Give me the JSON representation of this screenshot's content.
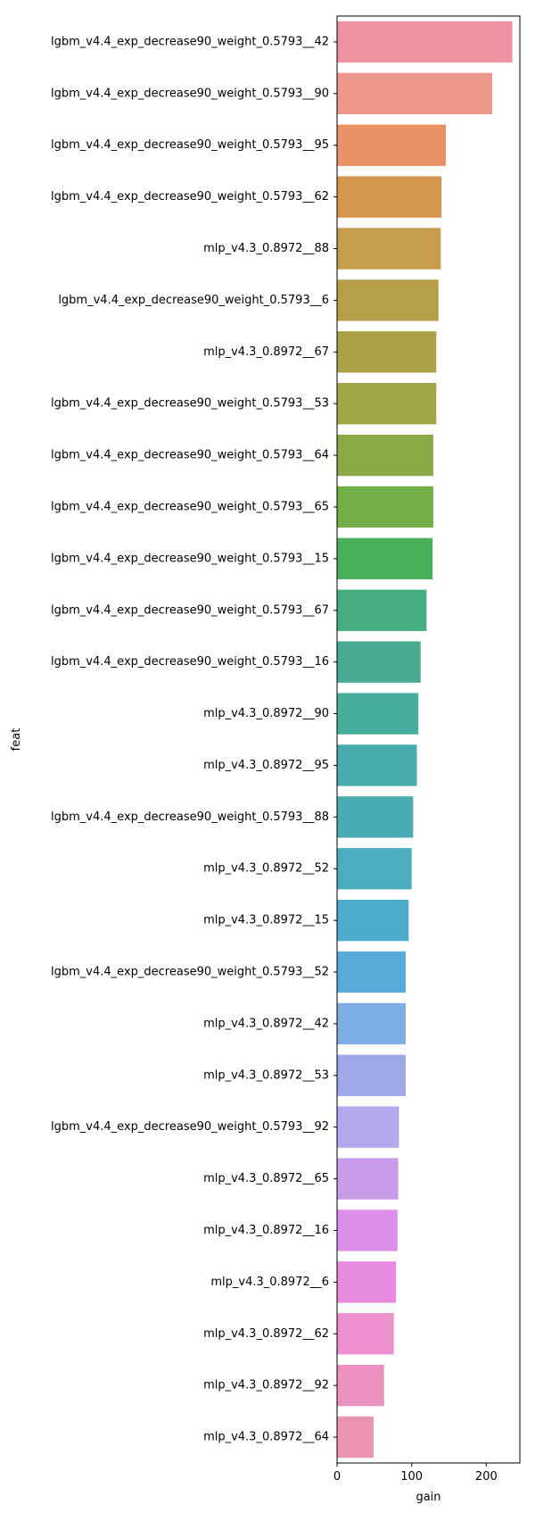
{
  "chart_data": {
    "type": "bar",
    "orientation": "horizontal",
    "title": "",
    "xlabel": "gain",
    "ylabel": "feat",
    "xlim": [
      0,
      245
    ],
    "xticks": [
      0,
      100,
      200
    ],
    "grid": false,
    "legend": "none",
    "categories": [
      "lgbm_v4.4_exp_decrease90_weight_0.5793__42",
      "lgbm_v4.4_exp_decrease90_weight_0.5793__90",
      "lgbm_v4.4_exp_decrease90_weight_0.5793__95",
      "lgbm_v4.4_exp_decrease90_weight_0.5793__62",
      "mlp_v4.3_0.8972__88",
      "lgbm_v4.4_exp_decrease90_weight_0.5793__6",
      "mlp_v4.3_0.8972__67",
      "lgbm_v4.4_exp_decrease90_weight_0.5793__53",
      "lgbm_v4.4_exp_decrease90_weight_0.5793__64",
      "lgbm_v4.4_exp_decrease90_weight_0.5793__65",
      "lgbm_v4.4_exp_decrease90_weight_0.5793__15",
      "lgbm_v4.4_exp_decrease90_weight_0.5793__67",
      "lgbm_v4.4_exp_decrease90_weight_0.5793__16",
      "mlp_v4.3_0.8972__90",
      "mlp_v4.3_0.8972__95",
      "lgbm_v4.4_exp_decrease90_weight_0.5793__88",
      "mlp_v4.3_0.8972__52",
      "mlp_v4.3_0.8972__15",
      "lgbm_v4.4_exp_decrease90_weight_0.5793__52",
      "mlp_v4.3_0.8972__42",
      "mlp_v4.3_0.8972__53",
      "lgbm_v4.4_exp_decrease90_weight_0.5793__92",
      "mlp_v4.3_0.8972__65",
      "mlp_v4.3_0.8972__16",
      "mlp_v4.3_0.8972__6",
      "mlp_v4.3_0.8972__62",
      "mlp_v4.3_0.8972__92",
      "mlp_v4.3_0.8972__64"
    ],
    "values": [
      235,
      208,
      146,
      140,
      139,
      136,
      133,
      133,
      129,
      129,
      128,
      120,
      112,
      109,
      107,
      102,
      100,
      96,
      92,
      92,
      92,
      83,
      82,
      81,
      79,
      76,
      63,
      49
    ],
    "colors": [
      "#ed939f",
      "#ed968a",
      "#e79367",
      "#d3964b",
      "#c59d4c",
      "#b79f48",
      "#aaa146",
      "#9ea646",
      "#8ca947",
      "#72af47",
      "#4bb05c",
      "#46ad7e",
      "#47ab91",
      "#48ad9b",
      "#48acac",
      "#4aabb5",
      "#4badbf",
      "#4eabcb",
      "#58aadb",
      "#7faee6",
      "#9fa8ea",
      "#b5a8ec",
      "#c89ce8",
      "#dc8fe8",
      "#e88ae0",
      "#ec91cd",
      "#eb92c1",
      "#ea93b2"
    ]
  }
}
